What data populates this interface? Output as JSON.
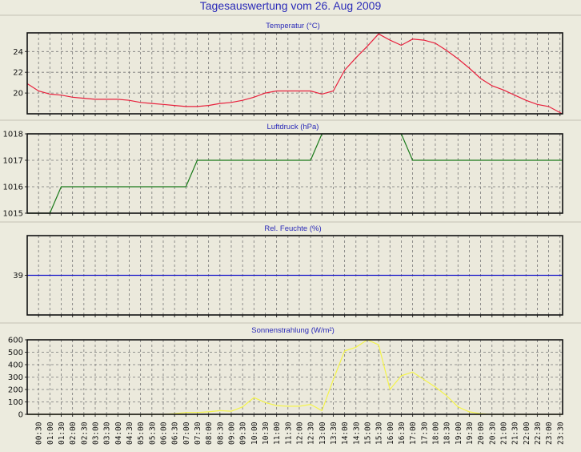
{
  "title": "Tagesauswertung vom 26. Aug 2009",
  "x_tick_labels": [
    "00:30",
    "01:00",
    "01:30",
    "02:00",
    "02:30",
    "03:00",
    "03:30",
    "04:00",
    "04:30",
    "05:00",
    "05:30",
    "06:00",
    "06:30",
    "07:00",
    "07:30",
    "08:00",
    "08:30",
    "09:00",
    "09:30",
    "10:00",
    "10:30",
    "11:00",
    "11:30",
    "12:00",
    "12:30",
    "13:00",
    "13:30",
    "14:00",
    "14:30",
    "15:00",
    "15:30",
    "16:00",
    "16:30",
    "17:00",
    "17:30",
    "18:00",
    "18:30",
    "19:00",
    "19:30",
    "20:00",
    "20:30",
    "21:00",
    "21:30",
    "22:00",
    "22:30",
    "23:00",
    "23:30"
  ],
  "colors": {
    "temp": "#e8203c",
    "pressure": "#1a7a1a",
    "humidity": "#1010c8",
    "solar": "#f4f44a",
    "title": "#2a2ab8"
  },
  "chart_data": [
    {
      "type": "line",
      "title": "Temperatur (°C)",
      "ylim": [
        18,
        25.8
      ],
      "yticks": [
        "20",
        "22",
        "24"
      ],
      "ytick_values": [
        20,
        22,
        24
      ],
      "xlim_hours": [
        0,
        23.6
      ],
      "x": [
        0,
        0.5,
        1,
        1.5,
        2,
        2.5,
        3,
        3.5,
        4,
        4.5,
        5,
        5.5,
        6,
        6.5,
        7,
        7.5,
        8,
        8.5,
        9,
        9.5,
        10,
        10.5,
        11,
        11.5,
        12,
        12.5,
        13,
        13.5,
        14,
        14.5,
        15,
        15.5,
        16,
        16.5,
        17,
        17.5,
        18,
        18.5,
        19,
        19.5,
        20,
        20.5,
        21,
        21.5,
        22,
        22.5,
        23,
        23.6
      ],
      "values": [
        20.9,
        20.2,
        19.9,
        19.8,
        19.6,
        19.5,
        19.4,
        19.4,
        19.4,
        19.3,
        19.1,
        19.0,
        18.9,
        18.8,
        18.7,
        18.7,
        18.8,
        19.0,
        19.1,
        19.3,
        19.6,
        20.0,
        20.2,
        20.2,
        20.2,
        20.2,
        19.9,
        20.2,
        22.2,
        23.4,
        24.5,
        25.7,
        25.1,
        24.6,
        25.2,
        25.1,
        24.8,
        24.1,
        23.3,
        22.4,
        21.4,
        20.7,
        20.3,
        19.8,
        19.3,
        18.9,
        18.7,
        18.0
      ]
    },
    {
      "type": "line",
      "title": "Luftdruck (hPa)",
      "ylim": [
        1015,
        1018
      ],
      "yticks": [
        "1015",
        "1016",
        "1017",
        "1018"
      ],
      "ytick_values": [
        1015,
        1016,
        1017,
        1018
      ],
      "xlim_hours": [
        0,
        23.6
      ],
      "x": [
        0,
        1,
        1.5,
        7,
        7.5,
        12.5,
        13,
        16.5,
        17,
        23.6
      ],
      "values": [
        1015,
        1015,
        1016,
        1016,
        1017,
        1017,
        1018,
        1018,
        1017,
        1017
      ]
    },
    {
      "type": "line",
      "title": "Rel. Feuchte (%)",
      "ylim": [
        38,
        40
      ],
      "yticks": [
        "39"
      ],
      "ytick_values": [
        39
      ],
      "xlim_hours": [
        0,
        23.6
      ],
      "x": [
        0,
        23.6
      ],
      "values": [
        39,
        39
      ]
    },
    {
      "type": "line",
      "title": "Sonnenstrahlung (W/m²)",
      "ylim": [
        0,
        600
      ],
      "yticks": [
        "0",
        "100",
        "200",
        "300",
        "400",
        "500",
        "600"
      ],
      "ytick_values": [
        0,
        100,
        200,
        300,
        400,
        500,
        600
      ],
      "xlim_hours": [
        0,
        23.6
      ],
      "x": [
        0,
        6,
        6.5,
        7,
        7.5,
        8,
        8.5,
        9,
        9.5,
        10,
        10.5,
        11,
        11.5,
        12,
        12.5,
        13,
        13.5,
        14,
        14.5,
        15,
        15.5,
        16,
        16.5,
        17,
        17.5,
        18,
        18.5,
        19,
        19.5,
        20,
        20.5,
        23.6
      ],
      "values": [
        0,
        0,
        5,
        15,
        15,
        20,
        30,
        25,
        60,
        135,
        95,
        70,
        65,
        65,
        80,
        30,
        280,
        510,
        540,
        600,
        560,
        200,
        310,
        340,
        280,
        220,
        150,
        60,
        20,
        5,
        0,
        0
      ]
    }
  ]
}
